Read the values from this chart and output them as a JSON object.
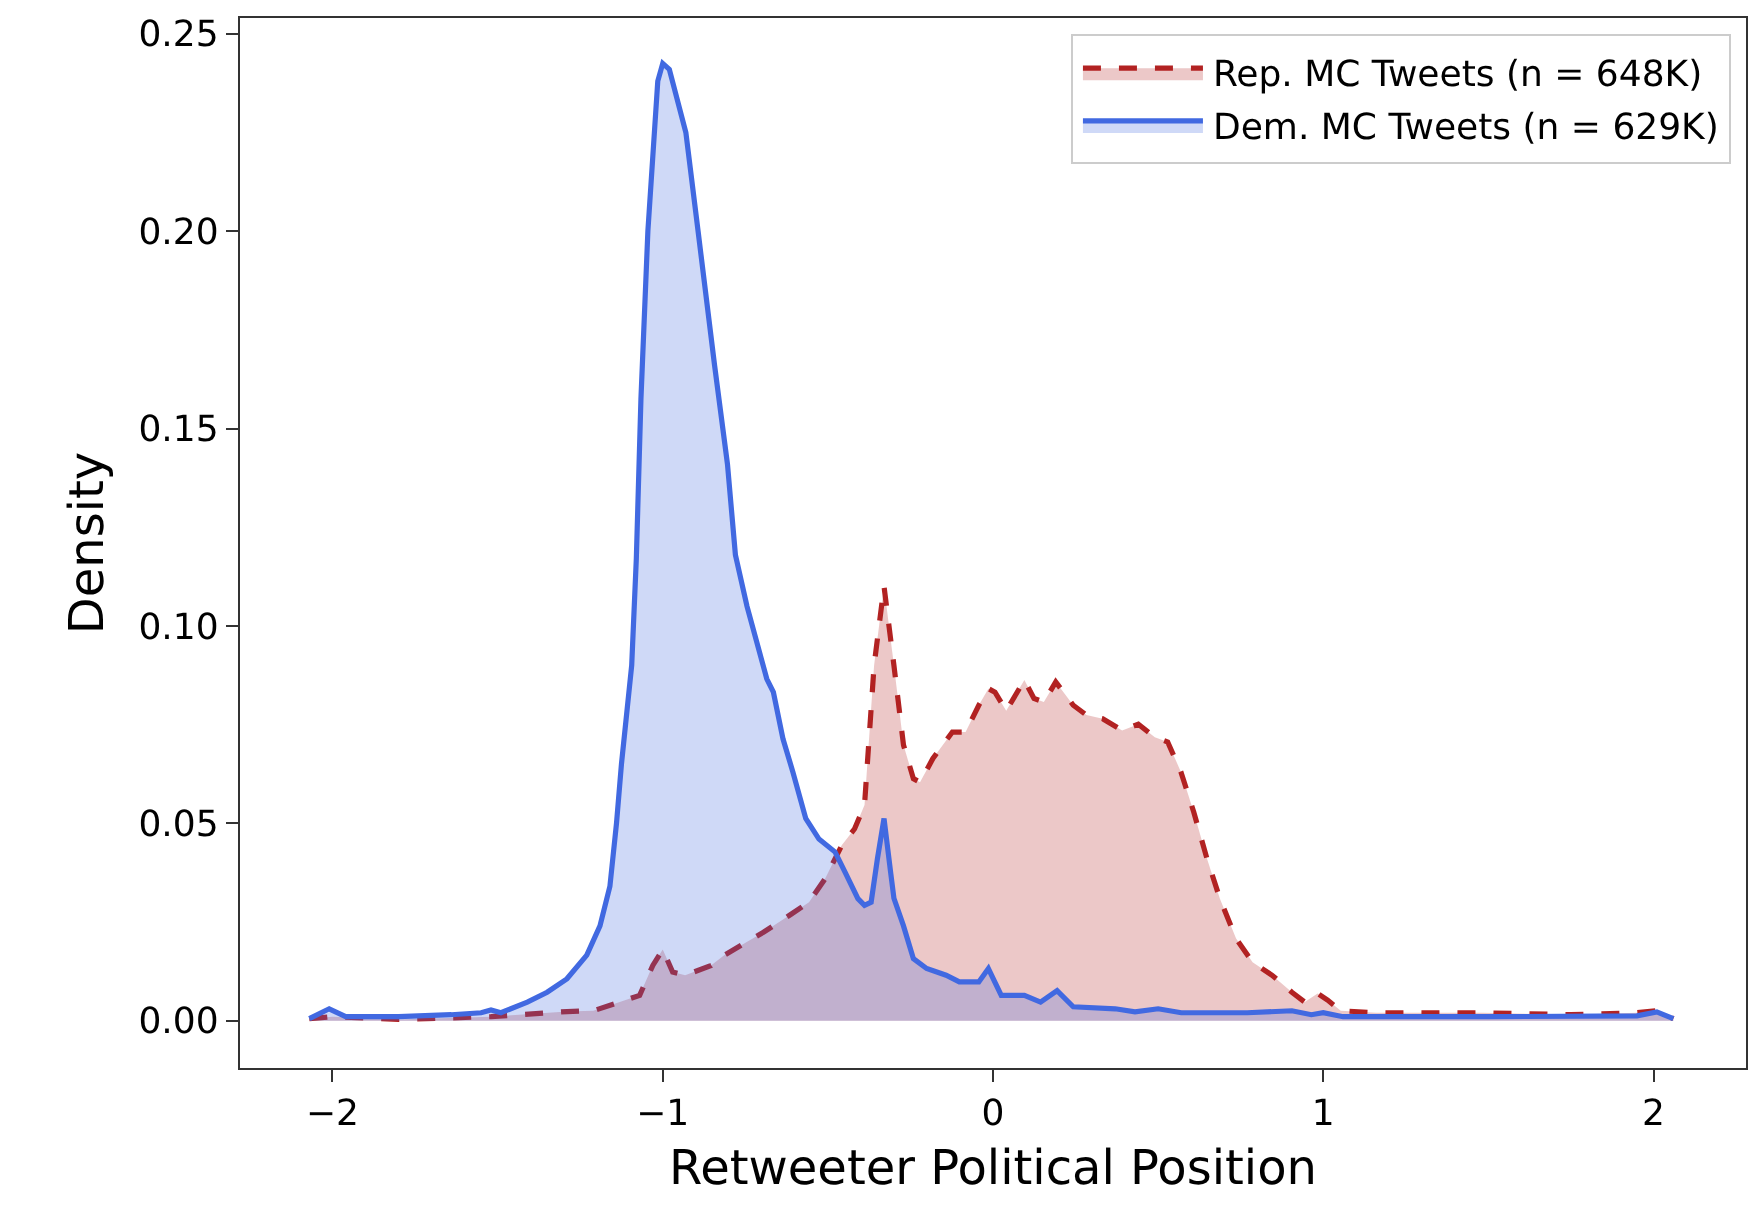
{
  "chart_data": {
    "type": "area",
    "xlabel": "Retweeter Political Position",
    "ylabel": "Density",
    "xlim": [
      -2.28,
      2.28
    ],
    "ylim": [
      -0.012,
      0.254
    ],
    "xticks": [
      {
        "value": -2,
        "label": "−2"
      },
      {
        "value": -1,
        "label": "−1"
      },
      0,
      1,
      2
    ],
    "yticks": [
      {
        "value": 0,
        "label": "0.00"
      },
      {
        "value": 0.05,
        "label": "0.05"
      },
      {
        "value": 0.1,
        "label": "0.10"
      },
      {
        "value": 0.15,
        "label": "0.15"
      },
      {
        "value": 0.2,
        "label": "0.20"
      },
      {
        "value": 0.25,
        "label": "0.25"
      }
    ],
    "legend": "top right",
    "series": [
      {
        "name": "Rep. MC Tweets (n = 648K)",
        "color": "#b22222",
        "line_style": "dashed",
        "x": [
          -2.07,
          -2.0,
          -1.8,
          -1.52,
          -1.29,
          -1.21,
          -1.13,
          -1.07,
          -1.03,
          -1.0,
          -0.97,
          -0.932,
          -0.853,
          -0.813,
          -0.695,
          -0.616,
          -0.557,
          -0.508,
          -0.458,
          -0.419,
          -0.389,
          -0.36,
          -0.33,
          -0.3,
          -0.271,
          -0.241,
          -0.221,
          -0.182,
          -0.123,
          -0.083,
          -0.043,
          -0.014,
          0.006,
          0.04,
          0.095,
          0.124,
          0.154,
          0.19,
          0.243,
          0.283,
          0.332,
          0.391,
          0.44,
          0.49,
          0.529,
          0.569,
          0.608,
          0.648,
          0.687,
          0.736,
          0.786,
          0.845,
          0.905,
          0.944,
          0.983,
          1.013,
          1.053,
          1.16,
          1.48,
          1.75,
          1.95,
          2.01,
          2.06
        ],
        "values": [
          0.0005,
          0.001,
          0.0003,
          0.001,
          0.0023,
          0.0025,
          0.0047,
          0.0064,
          0.014,
          0.018,
          0.0123,
          0.0115,
          0.014,
          0.0166,
          0.0224,
          0.0267,
          0.03,
          0.036,
          0.0444,
          0.0486,
          0.0546,
          0.09,
          0.11,
          0.09,
          0.0698,
          0.0613,
          0.0604,
          0.0664,
          0.0731,
          0.0731,
          0.0799,
          0.0841,
          0.0832,
          0.0785,
          0.0863,
          0.0816,
          0.0807,
          0.0858,
          0.0799,
          0.0774,
          0.0765,
          0.0735,
          0.0751,
          0.0718,
          0.0706,
          0.063,
          0.0528,
          0.041,
          0.0309,
          0.0208,
          0.0148,
          0.0115,
          0.0072,
          0.0047,
          0.0069,
          0.0052,
          0.0025,
          0.002,
          0.002,
          0.0015,
          0.002,
          0.0025,
          0.0005
        ]
      },
      {
        "name": "Dem. MC Tweets (n = 629K)",
        "color": "#4169e1",
        "line_style": "solid",
        "x": [
          -2.07,
          -2.01,
          -1.96,
          -1.8,
          -1.64,
          -1.55,
          -1.52,
          -1.49,
          -1.41,
          -1.35,
          -1.29,
          -1.23,
          -1.19,
          -1.16,
          -1.14,
          -1.125,
          -1.094,
          -1.08,
          -1.066,
          -1.045,
          -1.015,
          -1.0,
          -0.98,
          -0.93,
          -0.893,
          -0.843,
          -0.804,
          -0.78,
          -0.745,
          -0.685,
          -0.665,
          -0.636,
          -0.606,
          -0.567,
          -0.527,
          -0.478,
          -0.448,
          -0.409,
          -0.389,
          -0.369,
          -0.35,
          -0.33,
          -0.31,
          -0.3,
          -0.271,
          -0.241,
          -0.201,
          -0.142,
          -0.102,
          -0.043,
          -0.014,
          0.025,
          0.095,
          0.144,
          0.194,
          0.243,
          0.37,
          0.43,
          0.5,
          0.57,
          0.77,
          0.905,
          0.964,
          1.0,
          1.06,
          1.5,
          1.95,
          2.01,
          2.06
        ],
        "values": [
          0.0005,
          0.003,
          0.001,
          0.001,
          0.0015,
          0.002,
          0.0027,
          0.002,
          0.0047,
          0.0072,
          0.0106,
          0.0166,
          0.024,
          0.034,
          0.05,
          0.065,
          0.09,
          0.117,
          0.1575,
          0.2,
          0.238,
          0.2425,
          0.241,
          0.225,
          0.2,
          0.166,
          0.141,
          0.118,
          0.105,
          0.0866,
          0.0832,
          0.0714,
          0.063,
          0.0512,
          0.046,
          0.0427,
          0.0376,
          0.0309,
          0.0292,
          0.03,
          0.041,
          0.0512,
          0.0376,
          0.031,
          0.024,
          0.0157,
          0.0132,
          0.0115,
          0.0098,
          0.0098,
          0.0132,
          0.0064,
          0.0064,
          0.0047,
          0.0076,
          0.0035,
          0.003,
          0.0022,
          0.003,
          0.002,
          0.002,
          0.0025,
          0.0015,
          0.002,
          0.001,
          0.001,
          0.0012,
          0.0022,
          0.0005
        ]
      }
    ]
  }
}
